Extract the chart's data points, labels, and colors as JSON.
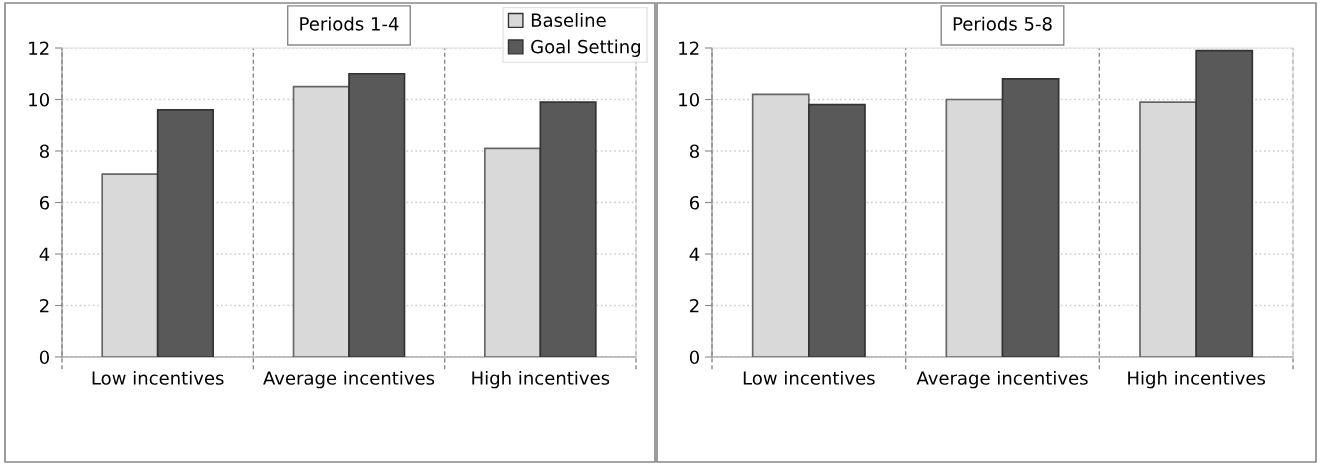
{
  "chart_data": [
    {
      "type": "bar",
      "title": "Periods 1-4",
      "categories": [
        "Low incentives",
        "Average incentives",
        "High incentives"
      ],
      "series": [
        {
          "name": "Baseline",
          "color": "#d9d9d9",
          "values": [
            7.1,
            10.5,
            8.1
          ]
        },
        {
          "name": "Goal Setting",
          "color": "#595959",
          "values": [
            9.6,
            11.0,
            9.9
          ]
        }
      ],
      "ylim": [
        0,
        12
      ],
      "yticks": [
        0,
        2,
        4,
        6,
        8,
        10,
        12
      ],
      "grid": true,
      "legend": "top right"
    },
    {
      "type": "bar",
      "title": "Periods 5-8",
      "categories": [
        "Low incentives",
        "Average incentives",
        "High incentives"
      ],
      "series": [
        {
          "color": "#d9d9d9",
          "values": [
            10.2,
            10.0,
            9.9
          ]
        },
        {
          "color": "#595959",
          "values": [
            9.8,
            10.8,
            11.9
          ]
        }
      ],
      "ylim": [
        0,
        12
      ],
      "yticks": [
        0,
        2,
        4,
        6,
        8,
        10,
        12
      ],
      "grid": true
    }
  ]
}
